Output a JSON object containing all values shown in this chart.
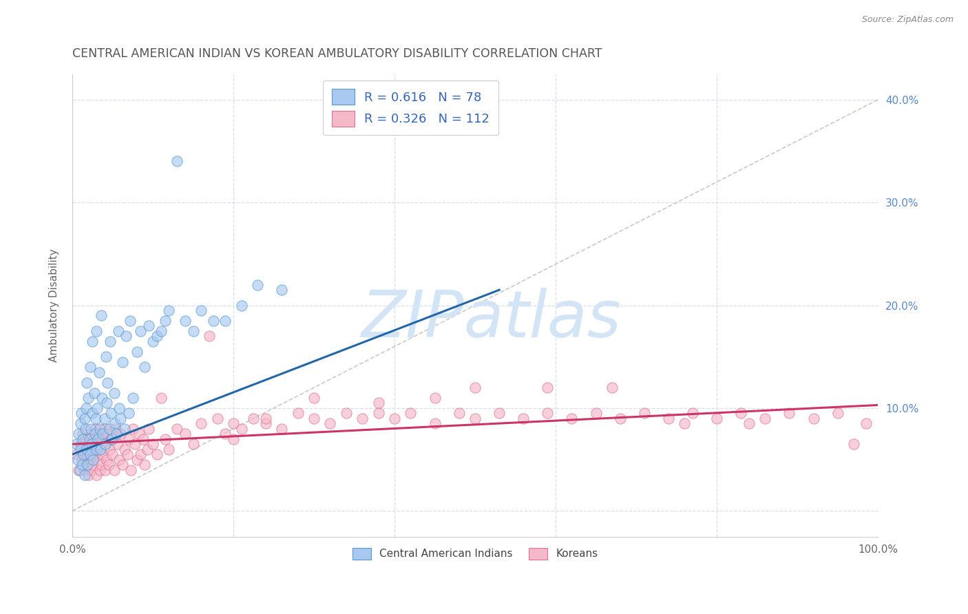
{
  "title": "CENTRAL AMERICAN INDIAN VS KOREAN AMBULATORY DISABILITY CORRELATION CHART",
  "source": "Source: ZipAtlas.com",
  "ylabel": "Ambulatory Disability",
  "xlim": [
    0,
    1.0
  ],
  "ylim": [
    -0.025,
    0.425
  ],
  "x_ticks": [
    0.0,
    0.2,
    0.4,
    0.6,
    0.8,
    1.0
  ],
  "x_tick_labels": [
    "0.0%",
    "",
    "",
    "",
    "",
    "100.0%"
  ],
  "y_ticks": [
    0.0,
    0.1,
    0.2,
    0.3,
    0.4
  ],
  "y_tick_labels": [
    "",
    "10.0%",
    "20.0%",
    "30.0%",
    "40.0%"
  ],
  "blue_R": "0.616",
  "blue_N": "78",
  "pink_R": "0.326",
  "pink_N": "112",
  "blue_fill_color": "#a8c8f0",
  "pink_fill_color": "#f5b8c8",
  "blue_edge_color": "#5599cc",
  "pink_edge_color": "#e07090",
  "blue_line_color": "#2266aa",
  "pink_line_color": "#cc3366",
  "diagonal_color": "#bbbbbb",
  "watermark_color": "#d4e4f7",
  "background_color": "#ffffff",
  "grid_color": "#d5dff0",
  "title_color": "#555555",
  "axis_label_color": "#666666",
  "tick_color": "#5588cc",
  "legend_text_color": "#3366bb",
  "bottom_legend_color": "#444444",
  "blue_line_x0": 0.0,
  "blue_line_y0": 0.055,
  "blue_line_x1": 0.53,
  "blue_line_y1": 0.215,
  "pink_line_x0": 0.0,
  "pink_line_y0": 0.065,
  "pink_line_x1": 1.0,
  "pink_line_y1": 0.103,
  "blue_scatter_x": [
    0.005,
    0.007,
    0.008,
    0.009,
    0.01,
    0.01,
    0.011,
    0.012,
    0.013,
    0.014,
    0.015,
    0.015,
    0.016,
    0.017,
    0.018,
    0.018,
    0.019,
    0.02,
    0.021,
    0.022,
    0.022,
    0.023,
    0.024,
    0.025,
    0.025,
    0.026,
    0.027,
    0.028,
    0.029,
    0.03,
    0.03,
    0.031,
    0.032,
    0.033,
    0.034,
    0.035,
    0.036,
    0.037,
    0.038,
    0.04,
    0.041,
    0.042,
    0.043,
    0.044,
    0.046,
    0.047,
    0.048,
    0.05,
    0.052,
    0.053,
    0.055,
    0.057,
    0.058,
    0.06,
    0.062,
    0.065,
    0.067,
    0.07,
    0.072,
    0.075,
    0.08,
    0.085,
    0.09,
    0.095,
    0.1,
    0.105,
    0.11,
    0.115,
    0.12,
    0.13,
    0.14,
    0.15,
    0.16,
    0.175,
    0.19,
    0.21,
    0.23,
    0.26
  ],
  "blue_scatter_y": [
    0.065,
    0.05,
    0.075,
    0.04,
    0.085,
    0.06,
    0.095,
    0.045,
    0.07,
    0.055,
    0.09,
    0.035,
    0.08,
    0.1,
    0.06,
    0.125,
    0.045,
    0.11,
    0.07,
    0.055,
    0.14,
    0.08,
    0.065,
    0.095,
    0.165,
    0.05,
    0.115,
    0.075,
    0.09,
    0.06,
    0.175,
    0.1,
    0.07,
    0.135,
    0.08,
    0.06,
    0.19,
    0.11,
    0.075,
    0.09,
    0.065,
    0.15,
    0.105,
    0.125,
    0.08,
    0.165,
    0.095,
    0.07,
    0.115,
    0.085,
    0.075,
    0.175,
    0.1,
    0.09,
    0.145,
    0.08,
    0.17,
    0.095,
    0.185,
    0.11,
    0.155,
    0.175,
    0.14,
    0.18,
    0.165,
    0.17,
    0.175,
    0.185,
    0.195,
    0.34,
    0.185,
    0.175,
    0.195,
    0.185,
    0.185,
    0.2,
    0.22,
    0.215
  ],
  "pink_scatter_x": [
    0.005,
    0.008,
    0.01,
    0.012,
    0.013,
    0.015,
    0.016,
    0.017,
    0.018,
    0.019,
    0.02,
    0.021,
    0.022,
    0.023,
    0.024,
    0.025,
    0.026,
    0.027,
    0.028,
    0.029,
    0.03,
    0.031,
    0.032,
    0.033,
    0.034,
    0.035,
    0.036,
    0.037,
    0.038,
    0.04,
    0.041,
    0.042,
    0.043,
    0.044,
    0.045,
    0.046,
    0.048,
    0.05,
    0.052,
    0.054,
    0.056,
    0.058,
    0.06,
    0.062,
    0.065,
    0.068,
    0.07,
    0.073,
    0.075,
    0.078,
    0.08,
    0.083,
    0.085,
    0.088,
    0.09,
    0.093,
    0.095,
    0.1,
    0.105,
    0.11,
    0.115,
    0.12,
    0.13,
    0.14,
    0.15,
    0.16,
    0.17,
    0.18,
    0.19,
    0.2,
    0.21,
    0.225,
    0.24,
    0.26,
    0.28,
    0.3,
    0.32,
    0.34,
    0.36,
    0.38,
    0.4,
    0.42,
    0.45,
    0.48,
    0.5,
    0.53,
    0.56,
    0.59,
    0.62,
    0.65,
    0.68,
    0.71,
    0.74,
    0.77,
    0.8,
    0.83,
    0.86,
    0.89,
    0.92,
    0.95,
    0.97,
    0.985,
    0.76,
    0.84,
    0.67,
    0.59,
    0.45,
    0.5,
    0.38,
    0.3,
    0.24,
    0.2
  ],
  "pink_scatter_y": [
    0.055,
    0.04,
    0.065,
    0.05,
    0.075,
    0.04,
    0.06,
    0.07,
    0.045,
    0.055,
    0.035,
    0.065,
    0.05,
    0.075,
    0.04,
    0.06,
    0.045,
    0.07,
    0.055,
    0.08,
    0.035,
    0.065,
    0.05,
    0.075,
    0.04,
    0.06,
    0.045,
    0.07,
    0.055,
    0.08,
    0.04,
    0.065,
    0.05,
    0.075,
    0.045,
    0.06,
    0.07,
    0.055,
    0.04,
    0.08,
    0.065,
    0.05,
    0.075,
    0.045,
    0.06,
    0.055,
    0.07,
    0.04,
    0.08,
    0.065,
    0.05,
    0.075,
    0.055,
    0.07,
    0.045,
    0.06,
    0.08,
    0.065,
    0.055,
    0.11,
    0.07,
    0.06,
    0.08,
    0.075,
    0.065,
    0.085,
    0.17,
    0.09,
    0.075,
    0.085,
    0.08,
    0.09,
    0.085,
    0.08,
    0.095,
    0.09,
    0.085,
    0.095,
    0.09,
    0.095,
    0.09,
    0.095,
    0.085,
    0.095,
    0.09,
    0.095,
    0.09,
    0.095,
    0.09,
    0.095,
    0.09,
    0.095,
    0.09,
    0.095,
    0.09,
    0.095,
    0.09,
    0.095,
    0.09,
    0.095,
    0.065,
    0.085,
    0.085,
    0.085,
    0.12,
    0.12,
    0.11,
    0.12,
    0.105,
    0.11,
    0.09,
    0.07
  ]
}
